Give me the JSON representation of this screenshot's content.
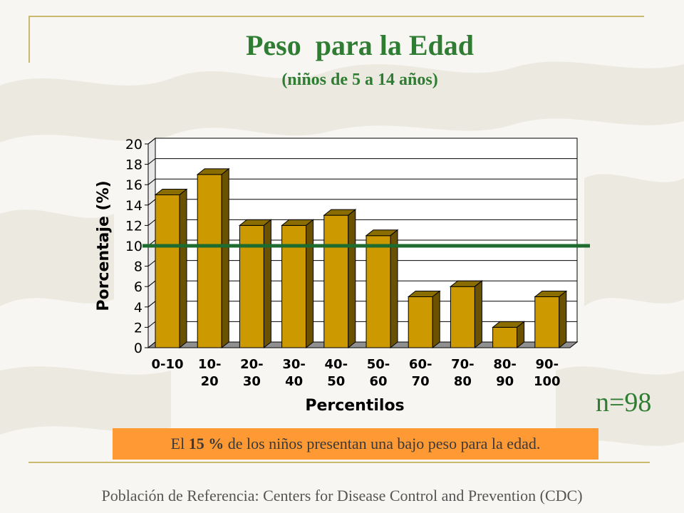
{
  "slide": {
    "title": "Peso  para la Edad",
    "subtitle": "(niños de 5 a 14 años)",
    "n_label": "n=98",
    "callout": {
      "prefix": "El ",
      "highlight": "15 %",
      "suffix": " de los niños presentan una bajo peso para la edad."
    },
    "footer": "Población de Referencia:  Centers for Disease Control and Prevention (CDC)"
  },
  "colors": {
    "title": "#2e7d32",
    "bar_front": "#cc9900",
    "bar_top": "#8a6d00",
    "bar_side": "#6b5200",
    "reference_line": "#1e6b2f",
    "callout_bg": "#ff9933"
  },
  "chart_data": {
    "type": "bar",
    "style": "3d",
    "categories": [
      [
        "0-10"
      ],
      [
        "10-",
        "20"
      ],
      [
        "20-",
        "30"
      ],
      [
        "30-",
        "40"
      ],
      [
        "40-",
        "50"
      ],
      [
        "50-",
        "60"
      ],
      [
        "60-",
        "70"
      ],
      [
        "70-",
        "80"
      ],
      [
        "80-",
        "90"
      ],
      [
        "90-",
        "100"
      ]
    ],
    "values": [
      15,
      17,
      12,
      12,
      13,
      11,
      5,
      6,
      2,
      5
    ],
    "xlabel": "Percentilos",
    "ylabel": "Porcentaje (%)",
    "ylim": [
      0,
      20
    ],
    "yticks": [
      "0",
      "2",
      "4",
      "6",
      "8",
      "10",
      "12",
      "14",
      "16",
      "18",
      "20"
    ],
    "reference_line": 10,
    "grid": true
  }
}
